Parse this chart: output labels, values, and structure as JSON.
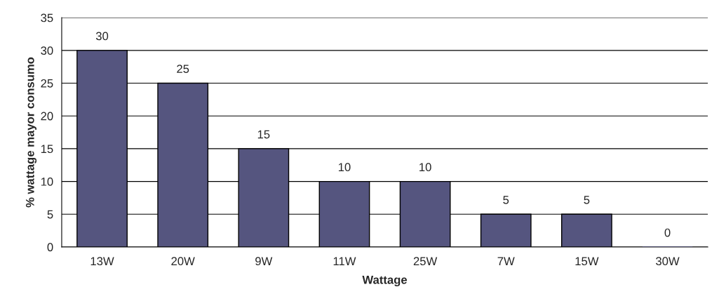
{
  "chart_data": {
    "type": "bar",
    "xlabel": "Wattage",
    "ylabel": "% wattage mayor consumo",
    "categories": [
      "13W",
      "20W",
      "9W",
      "11W",
      "25W",
      "7W",
      "15W",
      "30W"
    ],
    "values": [
      30,
      25,
      15,
      10,
      10,
      5,
      5,
      0
    ],
    "color": "#55557f",
    "ylim": [
      0,
      35
    ],
    "yticks": [
      0,
      5,
      10,
      15,
      20,
      25,
      30,
      35
    ],
    "grid": "y",
    "data_labels": true
  }
}
